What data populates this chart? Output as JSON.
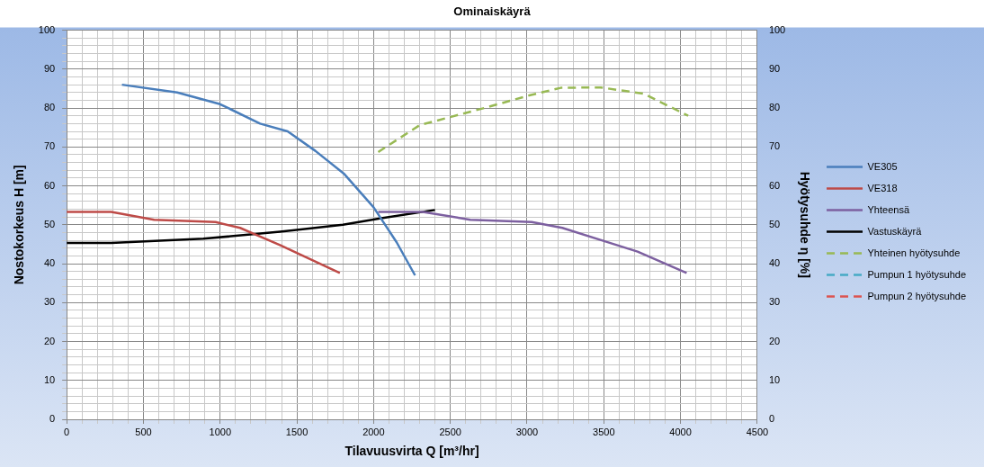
{
  "chart_data": {
    "type": "line",
    "title": "Ominaiskäyrä",
    "xlabel": "Tilavuusvirta Q [m³/hr]",
    "ylabel": "Nostokorkeus H [m]",
    "y2label": "Hyötysuhde η [%]",
    "xlim": [
      0,
      4500
    ],
    "xticks": [
      0,
      {
        "value": 100,
        "label": null
      },
      {
        "value": 200,
        "label": null
      },
      {
        "value": 300,
        "label": null
      },
      {
        "value": 400,
        "label": null
      },
      500,
      {
        "value": 600,
        "label": null
      },
      {
        "value": 700,
        "label": null
      },
      {
        "value": 800,
        "label": null
      },
      {
        "value": 900,
        "label": null
      },
      1000,
      {
        "value": 1100,
        "label": null
      },
      {
        "value": 1200,
        "label": null
      },
      {
        "value": 1300,
        "label": null
      },
      {
        "value": 1400,
        "label": null
      },
      1500,
      {
        "value": 1600,
        "label": null
      },
      {
        "value": 1700,
        "label": null
      },
      {
        "value": 1800,
        "label": null
      },
      {
        "value": 1900,
        "label": null
      },
      2000,
      {
        "value": 2100,
        "label": null
      },
      {
        "value": 2200,
        "label": null
      },
      {
        "value": 2300,
        "label": null
      },
      {
        "value": 2400,
        "label": null
      },
      2500,
      {
        "value": 2600,
        "label": null
      },
      {
        "value": 2700,
        "label": null
      },
      {
        "value": 2800,
        "label": null
      },
      {
        "value": 2900,
        "label": null
      },
      3000,
      {
        "value": 3100,
        "label": null
      },
      {
        "value": 3200,
        "label": null
      },
      {
        "value": 3300,
        "label": null
      },
      {
        "value": 3400,
        "label": null
      },
      3500,
      {
        "value": 3600,
        "label": null
      },
      {
        "value": 3700,
        "label": null
      },
      {
        "value": 3800,
        "label": null
      },
      {
        "value": 3900,
        "label": null
      },
      4000,
      {
        "value": 4100,
        "label": null
      },
      {
        "value": 4200,
        "label": null
      },
      {
        "value": 4300,
        "label": null
      },
      {
        "value": 4400,
        "label": null
      },
      4500
    ],
    "ylim": [
      0,
      100
    ],
    "yticks": [
      0,
      {
        "value": 2,
        "label": null
      },
      {
        "value": 4,
        "label": null
      },
      {
        "value": 6,
        "label": null
      },
      {
        "value": 8,
        "label": null
      },
      10,
      {
        "value": 12,
        "label": null
      },
      {
        "value": 14,
        "label": null
      },
      {
        "value": 16,
        "label": null
      },
      {
        "value": 18,
        "label": null
      },
      20,
      {
        "value": 22,
        "label": null
      },
      {
        "value": 24,
        "label": null
      },
      {
        "value": 26,
        "label": null
      },
      {
        "value": 28,
        "label": null
      },
      30,
      {
        "value": 32,
        "label": null
      },
      {
        "value": 34,
        "label": null
      },
      {
        "value": 36,
        "label": null
      },
      {
        "value": 38,
        "label": null
      },
      40,
      {
        "value": 42,
        "label": null
      },
      {
        "value": 44,
        "label": null
      },
      {
        "value": 46,
        "label": null
      },
      {
        "value": 48,
        "label": null
      },
      50,
      {
        "value": 52,
        "label": null
      },
      {
        "value": 54,
        "label": null
      },
      {
        "value": 56,
        "label": null
      },
      {
        "value": 58,
        "label": null
      },
      60,
      {
        "value": 62,
        "label": null
      },
      {
        "value": 64,
        "label": null
      },
      {
        "value": 66,
        "label": null
      },
      {
        "value": 68,
        "label": null
      },
      70,
      {
        "value": 72,
        "label": null
      },
      {
        "value": 74,
        "label": null
      },
      {
        "value": 76,
        "label": null
      },
      {
        "value": 78,
        "label": null
      },
      80,
      {
        "value": 82,
        "label": null
      },
      {
        "value": 84,
        "label": null
      },
      {
        "value": 86,
        "label": null
      },
      {
        "value": 88,
        "label": null
      },
      90,
      {
        "value": 92,
        "label": null
      },
      {
        "value": 94,
        "label": null
      },
      {
        "value": 96,
        "label": null
      },
      {
        "value": 98,
        "label": null
      },
      100
    ],
    "y2lim": [
      0,
      100
    ],
    "y2ticks": [
      0,
      10,
      20,
      30,
      40,
      50,
      60,
      70,
      80,
      90,
      100
    ],
    "grid": true,
    "legend": "right",
    "marker": "none",
    "series": [
      {
        "name": "VE305",
        "color": "#4a7ebb",
        "x": [
          360,
          720,
          1000,
          1260,
          1440,
          1620,
          1810,
          2000,
          2150,
          2270
        ],
        "values": [
          86,
          84,
          81,
          76,
          74,
          69,
          63,
          54.5,
          45.5,
          37
        ]
      },
      {
        "name": "VE318",
        "color": "#be4b48",
        "x": [
          0,
          290,
          570,
          970,
          1130,
          1390,
          1780
        ],
        "values": [
          53.3,
          53.3,
          51.3,
          50.7,
          49.2,
          44.8,
          37.6
        ]
      },
      {
        "name": "Yhteensä",
        "color": "#7d60a0",
        "x": [
          2030,
          2320,
          2630,
          3030,
          3230,
          3520,
          3720,
          4040
        ],
        "values": [
          53.3,
          53.3,
          51.3,
          50.7,
          49.2,
          45.6,
          43.1,
          37.6
        ]
      },
      {
        "name": "Vastuskäyrä",
        "color": "#000000",
        "x": [
          0,
          290,
          890,
          1390,
          1800,
          2050,
          2400
        ],
        "values": [
          45.3,
          45.3,
          46.4,
          48.2,
          50,
          51.7,
          53.8
        ]
      },
      {
        "name": "Yhteinen hyötysuhde",
        "color": "#98b954",
        "axis": "y2",
        "line_style": "dashed",
        "x": [
          2030,
          2300,
          2720,
          3020,
          3220,
          3480,
          3760,
          4050
        ],
        "values": [
          68.7,
          75.6,
          80,
          83.3,
          85.2,
          85.3,
          83.7,
          78
        ]
      },
      {
        "name": "Pumpun 1 hyötysuhde",
        "color": "#46aac5",
        "axis": "y2",
        "line_style": "dashed"
      },
      {
        "name": "Pumpun 2 hyötysuhde",
        "color": "#dc5450",
        "axis": "y2",
        "line_style": "dashed"
      }
    ]
  }
}
